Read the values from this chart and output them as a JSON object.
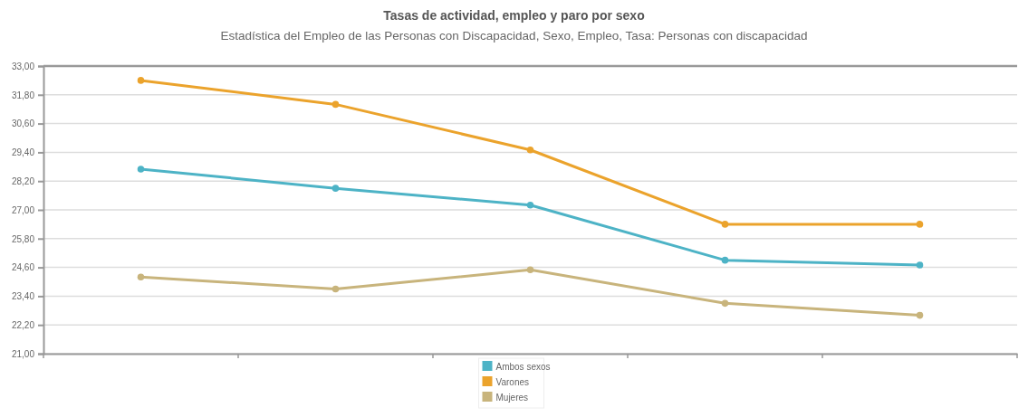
{
  "chart_data": {
    "type": "line",
    "title": "Tasas de actividad, empleo y paro por sexo",
    "subtitle": "Estadística del Empleo de las Personas con Discapacidad, Sexo, Empleo, Tasa: Personas con discapacidad",
    "categories": [
      null,
      null,
      null,
      null,
      null
    ],
    "series": [
      {
        "name": "Ambos sexos",
        "color": "#4db3c6",
        "values": [
          28.7,
          27.9,
          27.2,
          24.9,
          24.7
        ]
      },
      {
        "name": "Varones",
        "color": "#eba32c",
        "values": [
          32.4,
          31.4,
          29.5,
          26.4,
          26.4
        ]
      },
      {
        "name": "Mujeres",
        "color": "#c8b47c",
        "values": [
          24.2,
          23.7,
          24.5,
          23.1,
          22.6
        ]
      }
    ],
    "ylim": [
      21,
      33
    ],
    "yticks": [
      {
        "value": 33,
        "label": "33,00"
      },
      {
        "value": 31.8,
        "label": "31,80"
      },
      {
        "value": 30.6,
        "label": "30,60"
      },
      {
        "value": 29.4,
        "label": "29,40"
      },
      {
        "value": 28.2,
        "label": "28,20"
      },
      {
        "value": 27,
        "label": "27,00"
      },
      {
        "value": 25.8,
        "label": "25,80"
      },
      {
        "value": 24.6,
        "label": "24,60"
      },
      {
        "value": 23.4,
        "label": "23,40"
      },
      {
        "value": 22.2,
        "label": "22,20"
      },
      {
        "value": 21,
        "label": "21,00"
      }
    ],
    "grid": "y",
    "legend": "bottom",
    "marker": "circle",
    "line_style": "solid"
  }
}
